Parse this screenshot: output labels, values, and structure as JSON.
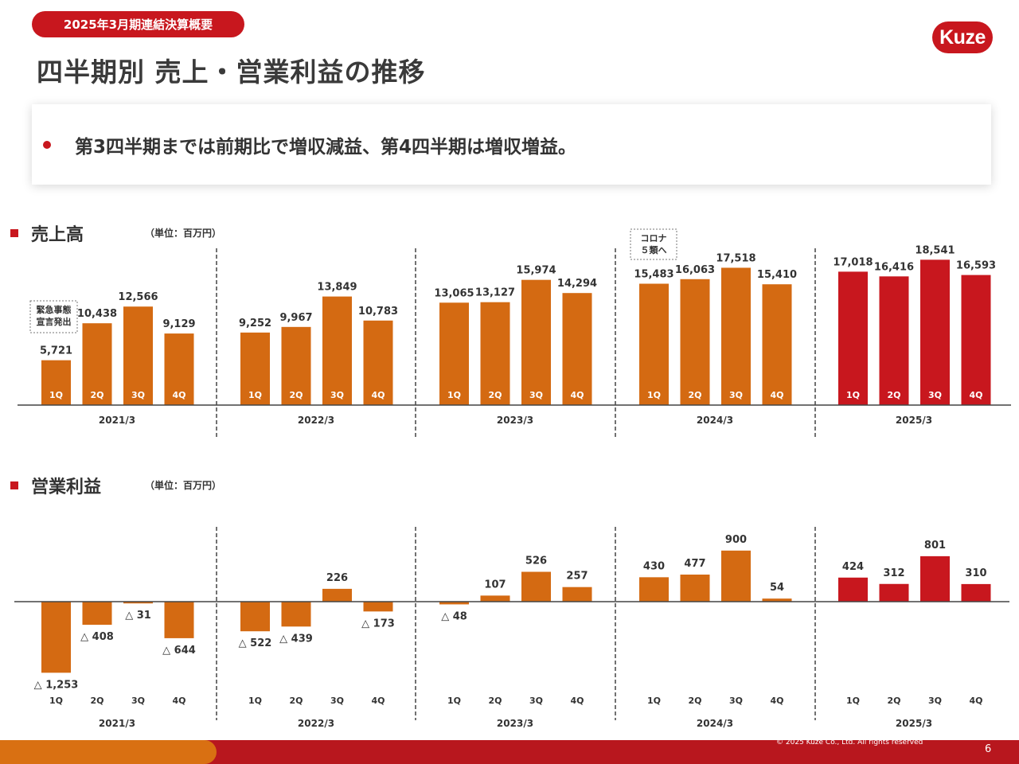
{
  "header": {
    "tag": "2025年3月期連結決算概要",
    "title": "四半期別 売上・営業利益の推移",
    "logo": "Kuze"
  },
  "summary": {
    "bullet": "第3四半期までは前期比で増収減益、第4四半期は増収増益。"
  },
  "sales_section": {
    "title": "売上高",
    "unit": "（単位：百万円）"
  },
  "profit_section": {
    "title": "営業利益",
    "unit": "（単位：百万円）"
  },
  "footer": {
    "copyright": "© 2025 Kuze Co., Ltd. All rights reserved",
    "page": "6"
  },
  "colors": {
    "orange": "#d46a12",
    "red": "#c8171e"
  },
  "chart_data": [
    {
      "type": "bar",
      "title": "売上高",
      "unit": "（単位：百万円）",
      "groups": [
        "2021/3",
        "2022/3",
        "2023/3",
        "2024/3",
        "2025/3"
      ],
      "quarters": [
        "1Q",
        "2Q",
        "3Q",
        "4Q"
      ],
      "series": [
        {
          "values": [
            5721,
            10438,
            12566,
            9129
          ],
          "labels": [
            "5,721",
            "10,438",
            "12,566",
            "9,129"
          ]
        },
        {
          "values": [
            9252,
            9967,
            13849,
            10783
          ],
          "labels": [
            "9,252",
            "9,967",
            "13,849",
            "10,783"
          ]
        },
        {
          "values": [
            13065,
            13127,
            15974,
            14294
          ],
          "labels": [
            "13,065",
            "13,127",
            "15,974",
            "14,294"
          ]
        },
        {
          "values": [
            15483,
            16063,
            17518,
            15410
          ],
          "labels": [
            "15,483",
            "16,063",
            "17,518",
            "15,410"
          ]
        },
        {
          "values": [
            17018,
            16416,
            18541,
            16593
          ],
          "labels": [
            "17,018",
            "16,416",
            "18,541",
            "16,593"
          ]
        }
      ],
      "annotations": [
        {
          "text": [
            "緊急事態",
            "宣言発出"
          ],
          "group": 0
        },
        {
          "text": [
            "コロナ",
            "５類へ"
          ],
          "group": 3
        }
      ],
      "ylim": [
        0,
        20000
      ]
    },
    {
      "type": "bar",
      "title": "営業利益",
      "unit": "（単位：百万円）",
      "groups": [
        "2021/3",
        "2022/3",
        "2023/3",
        "2024/3",
        "2025/3"
      ],
      "quarters": [
        "1Q",
        "2Q",
        "3Q",
        "4Q"
      ],
      "series": [
        {
          "values": [
            -1253,
            -408,
            -31,
            -644
          ],
          "labels": [
            "△ 1,253",
            "△ 408",
            "△ 31",
            "△ 644"
          ]
        },
        {
          "values": [
            -522,
            -439,
            226,
            -173
          ],
          "labels": [
            "△ 522",
            "△ 439",
            "226",
            "△ 173"
          ]
        },
        {
          "values": [
            -48,
            107,
            526,
            257
          ],
          "labels": [
            "△ 48",
            "107",
            "526",
            "257"
          ]
        },
        {
          "values": [
            430,
            477,
            900,
            54
          ],
          "labels": [
            "430",
            "477",
            "900",
            "54"
          ]
        },
        {
          "values": [
            424,
            312,
            801,
            310
          ],
          "labels": [
            "424",
            "312",
            "801",
            "310"
          ]
        }
      ],
      "ylim": [
        -1300,
        1000
      ]
    }
  ]
}
